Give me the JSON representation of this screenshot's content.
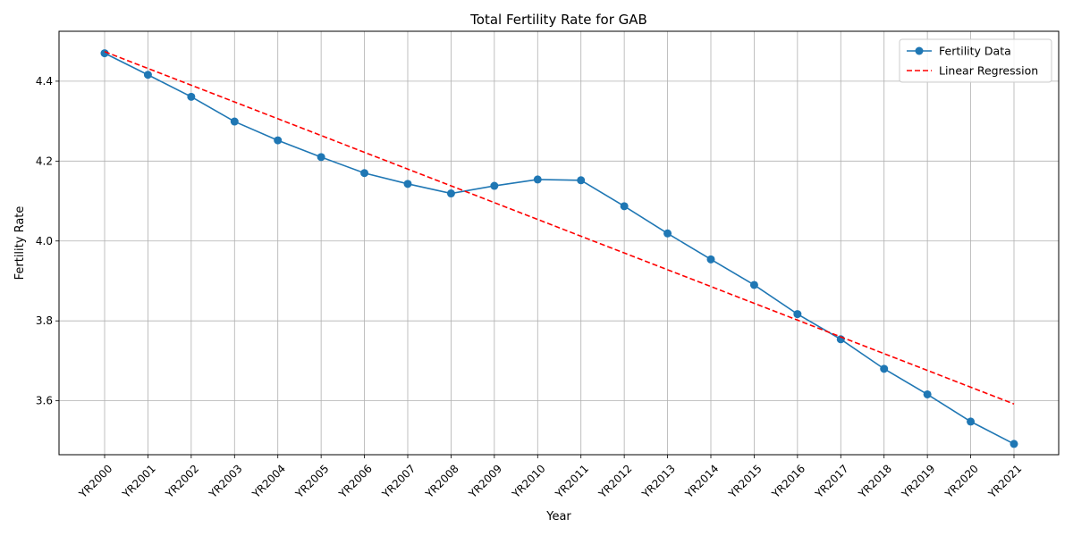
{
  "chart_data": {
    "type": "line",
    "title": "Total Fertility Rate for GAB",
    "xlabel": "Year",
    "ylabel": "Fertility Rate",
    "categories": [
      "YR2000",
      "YR2001",
      "YR2002",
      "YR2003",
      "YR2004",
      "YR2005",
      "YR2006",
      "YR2007",
      "YR2008",
      "YR2009",
      "YR2010",
      "YR2011",
      "YR2012",
      "YR2013",
      "YR2014",
      "YR2015",
      "YR2016",
      "YR2017",
      "YR2018",
      "YR2019",
      "YR2020",
      "YR2021"
    ],
    "ylim": [
      3.465,
      4.525
    ],
    "yticks": [
      3.6,
      3.8,
      4.0,
      4.2,
      4.4
    ],
    "ytick_labels": [
      "3.6",
      "3.8",
      "4.0",
      "4.2",
      "4.4"
    ],
    "grid": true,
    "legend_position": "top-right",
    "series": [
      {
        "name": "Fertility Data",
        "style": "solid-with-markers",
        "color": "#1f77b4",
        "values": [
          4.47,
          4.416,
          4.361,
          4.299,
          4.252,
          4.21,
          4.17,
          4.143,
          4.119,
          4.138,
          4.154,
          4.152,
          4.087,
          4.019,
          3.954,
          3.89,
          3.817,
          3.754,
          3.68,
          3.616,
          3.548,
          3.492
        ]
      },
      {
        "name": "Linear Regression",
        "style": "dashed",
        "color": "#ff0000",
        "values": [
          4.474,
          4.432,
          4.39,
          4.348,
          4.306,
          4.264,
          4.222,
          4.18,
          4.138,
          4.096,
          4.054,
          4.012,
          3.97,
          3.928,
          3.886,
          3.844,
          3.802,
          3.76,
          3.718,
          3.676,
          3.634,
          3.592
        ]
      }
    ]
  }
}
